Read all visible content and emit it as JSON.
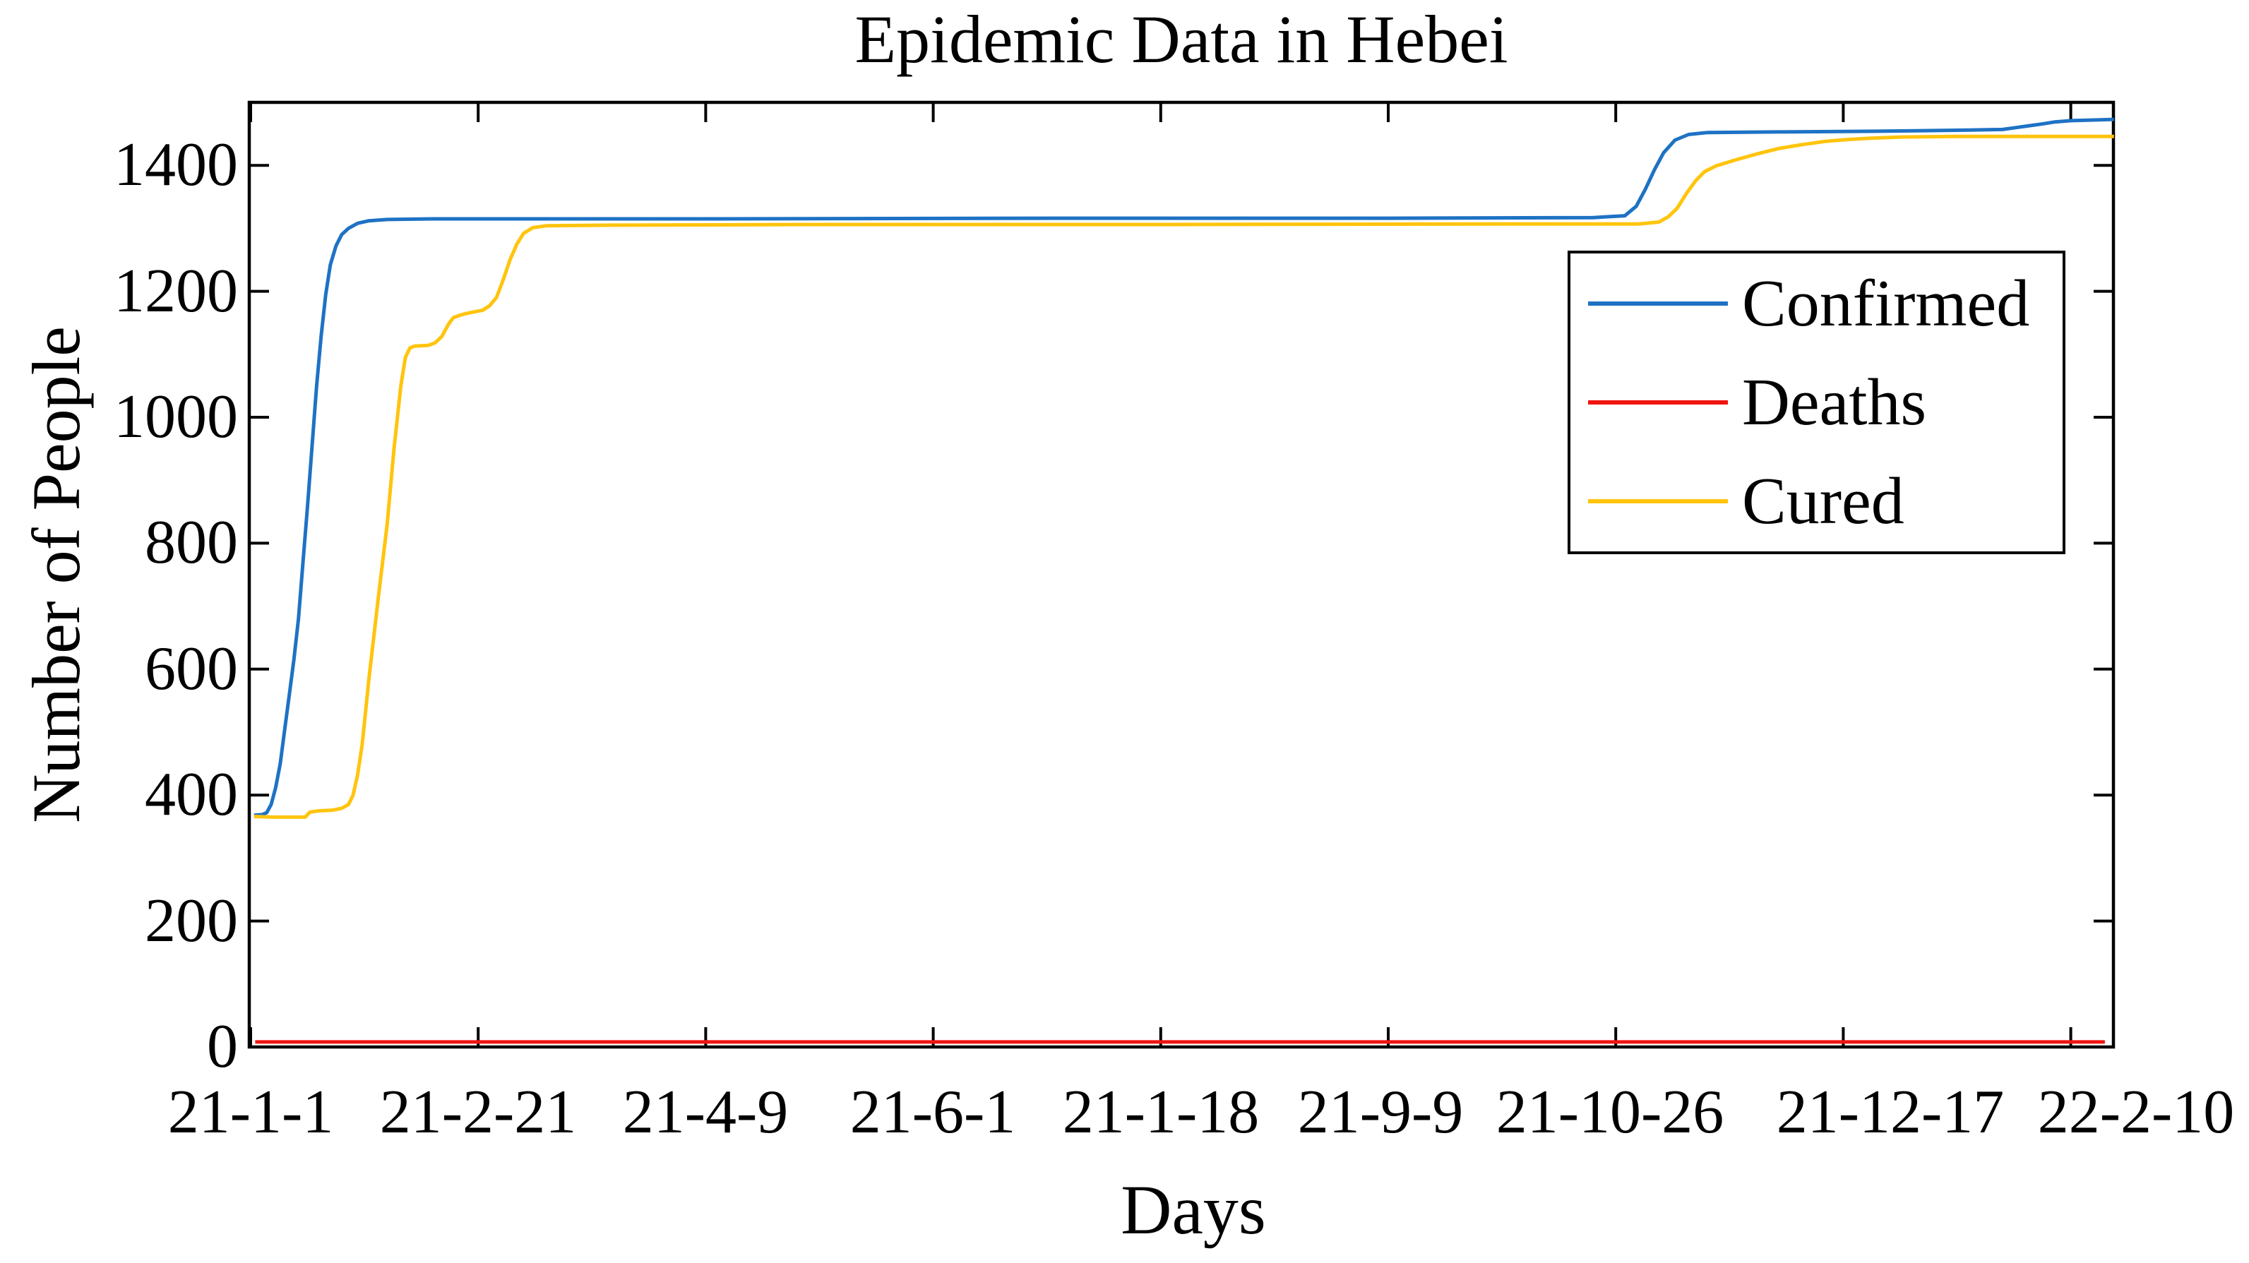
{
  "chart_data": {
    "type": "line",
    "title": "Epidemic Data in Hebei",
    "xlabel": "Days",
    "ylabel": "Number of People",
    "x_tick_labels": [
      "21-1-1",
      "21-2-21",
      "21-4-9",
      "21-6-1",
      "21-1-18",
      "21-9-9",
      "21-10-26",
      "21-12-17",
      "22-2-10"
    ],
    "y_ticks": [
      0,
      200,
      400,
      600,
      800,
      1000,
      1200,
      1400
    ],
    "ylim": [
      0,
      1500
    ],
    "xlim_tick_units": [
      0,
      8.19
    ],
    "x_unit_note": "x values are in tick units: 0 = 21-1-1 tick, 1 = 21-2-21 tick, ... 8 = 22-2-10 tick (about 50 days per unit)",
    "grid": false,
    "legend": {
      "position": "upper right",
      "entries": [
        "Confirmed",
        "Deaths",
        "Cured"
      ]
    },
    "colors": {
      "confirmed": "#1E72C4",
      "deaths": "#F01410",
      "cured": "#FFC40D",
      "axis": "#000000",
      "background": "#FFFFFF"
    },
    "series": [
      {
        "name": "Confirmed",
        "color": "#1E72C4",
        "points": [
          [
            0.015,
            368
          ],
          [
            0.05,
            369
          ],
          [
            0.07,
            372
          ],
          [
            0.09,
            385
          ],
          [
            0.11,
            412
          ],
          [
            0.13,
            450
          ],
          [
            0.15,
            505
          ],
          [
            0.17,
            560
          ],
          [
            0.19,
            615
          ],
          [
            0.21,
            680
          ],
          [
            0.23,
            770
          ],
          [
            0.25,
            860
          ],
          [
            0.27,
            955
          ],
          [
            0.29,
            1050
          ],
          [
            0.31,
            1130
          ],
          [
            0.33,
            1195
          ],
          [
            0.35,
            1242
          ],
          [
            0.375,
            1272
          ],
          [
            0.4,
            1290
          ],
          [
            0.43,
            1300
          ],
          [
            0.47,
            1308
          ],
          [
            0.52,
            1312
          ],
          [
            0.6,
            1314
          ],
          [
            0.8,
            1315
          ],
          [
            2.0,
            1315
          ],
          [
            3.5,
            1316
          ],
          [
            5.0,
            1316
          ],
          [
            5.9,
            1317
          ],
          [
            6.04,
            1320
          ],
          [
            6.09,
            1335
          ],
          [
            6.13,
            1362
          ],
          [
            6.17,
            1393
          ],
          [
            6.21,
            1420
          ],
          [
            6.26,
            1440
          ],
          [
            6.32,
            1449
          ],
          [
            6.4,
            1452
          ],
          [
            6.7,
            1453
          ],
          [
            7.1,
            1454
          ],
          [
            7.35,
            1455
          ],
          [
            7.55,
            1456
          ],
          [
            7.7,
            1457
          ],
          [
            7.76,
            1460
          ],
          [
            7.82,
            1463
          ],
          [
            7.88,
            1466
          ],
          [
            7.93,
            1469
          ],
          [
            8.0,
            1471
          ],
          [
            8.1,
            1472
          ],
          [
            8.19,
            1473
          ]
        ]
      },
      {
        "name": "Deaths",
        "color": "#F01410",
        "points": [
          [
            0.02,
            8
          ],
          [
            8.15,
            8
          ]
        ]
      },
      {
        "name": "Cured",
        "color": "#FFC40D",
        "points": [
          [
            0.015,
            366
          ],
          [
            0.1,
            365
          ],
          [
            0.24,
            365
          ],
          [
            0.26,
            373
          ],
          [
            0.3,
            375
          ],
          [
            0.36,
            376
          ],
          [
            0.4,
            379
          ],
          [
            0.43,
            385
          ],
          [
            0.45,
            400
          ],
          [
            0.47,
            432
          ],
          [
            0.49,
            480
          ],
          [
            0.52,
            585
          ],
          [
            0.56,
            710
          ],
          [
            0.6,
            830
          ],
          [
            0.63,
            950
          ],
          [
            0.66,
            1050
          ],
          [
            0.68,
            1095
          ],
          [
            0.7,
            1110
          ],
          [
            0.72,
            1113
          ],
          [
            0.78,
            1114
          ],
          [
            0.81,
            1118
          ],
          [
            0.84,
            1128
          ],
          [
            0.87,
            1148
          ],
          [
            0.89,
            1158
          ],
          [
            0.92,
            1162
          ],
          [
            0.95,
            1165
          ],
          [
            1.02,
            1170
          ],
          [
            1.05,
            1177
          ],
          [
            1.08,
            1190
          ],
          [
            1.11,
            1218
          ],
          [
            1.14,
            1250
          ],
          [
            1.17,
            1275
          ],
          [
            1.2,
            1292
          ],
          [
            1.24,
            1301
          ],
          [
            1.3,
            1304
          ],
          [
            1.6,
            1305
          ],
          [
            2.5,
            1306
          ],
          [
            4.0,
            1306
          ],
          [
            5.5,
            1307
          ],
          [
            6.1,
            1307
          ],
          [
            6.19,
            1310
          ],
          [
            6.23,
            1318
          ],
          [
            6.27,
            1332
          ],
          [
            6.31,
            1355
          ],
          [
            6.35,
            1375
          ],
          [
            6.39,
            1390
          ],
          [
            6.44,
            1399
          ],
          [
            6.52,
            1408
          ],
          [
            6.62,
            1418
          ],
          [
            6.72,
            1427
          ],
          [
            6.82,
            1433
          ],
          [
            6.92,
            1438
          ],
          [
            7.02,
            1441
          ],
          [
            7.12,
            1443
          ],
          [
            7.25,
            1445
          ],
          [
            7.5,
            1446
          ],
          [
            8.19,
            1446
          ]
        ]
      }
    ]
  }
}
